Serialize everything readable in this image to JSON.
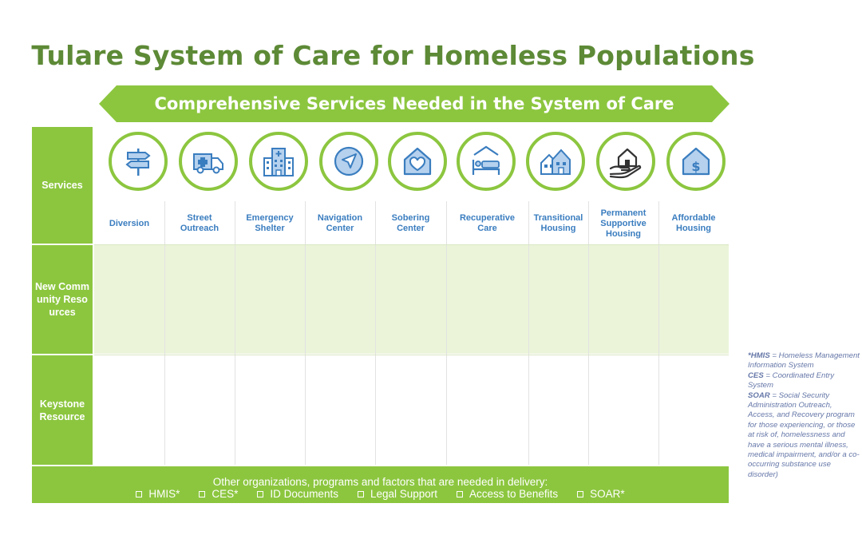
{
  "title": "Tulare System of Care for Homeless Populations",
  "banner": "Comprehensive Services Needed in the System of Care",
  "rows": {
    "services": "Services",
    "new_community": "New Community Resources",
    "keystone": "Keystone Resource"
  },
  "services": [
    {
      "label": "Diversion",
      "icon": "signpost-icon"
    },
    {
      "label": "Street Outreach",
      "icon": "ambulance-icon"
    },
    {
      "label": "Emergency Shelter",
      "icon": "hospital-building-icon"
    },
    {
      "label": "Navigation Center",
      "icon": "navigation-arrow-icon"
    },
    {
      "label": "Sobering Center",
      "icon": "house-heart-icon"
    },
    {
      "label": "Recuperative Care",
      "icon": "bed-icon"
    },
    {
      "label": "Transitional Housing",
      "icon": "houses-icon"
    },
    {
      "label": "Permanent Supportive Housing",
      "icon": "house-in-hand-icon"
    },
    {
      "label": "Affordable Housing",
      "icon": "house-dollar-icon"
    }
  ],
  "bottom": {
    "title": "Other organizations, programs and factors that are needed in delivery:",
    "items": [
      "HMIS*",
      "CES*",
      "ID Documents",
      "Legal Support",
      "Access to Benefits",
      "SOAR*"
    ]
  },
  "legend": [
    {
      "term": "*HMIS",
      "definition": " = Homeless Management Information System"
    },
    {
      "term": "CES",
      "definition": " = Coordinated Entry System"
    },
    {
      "term": "SOAR",
      "definition": " = Social Security Administration Outreach, Access, and Recovery program for those experiencing, or those at risk of, homelessness and have a serious mental illness, medical impairment, and/or a co-occurring substance use disorder)"
    }
  ],
  "colors": {
    "title": "#5d8a36",
    "green": "#8cc63f",
    "light_green": "#ebf4d9",
    "label_blue": "#3a7dbf",
    "legend": "#6577a8"
  }
}
